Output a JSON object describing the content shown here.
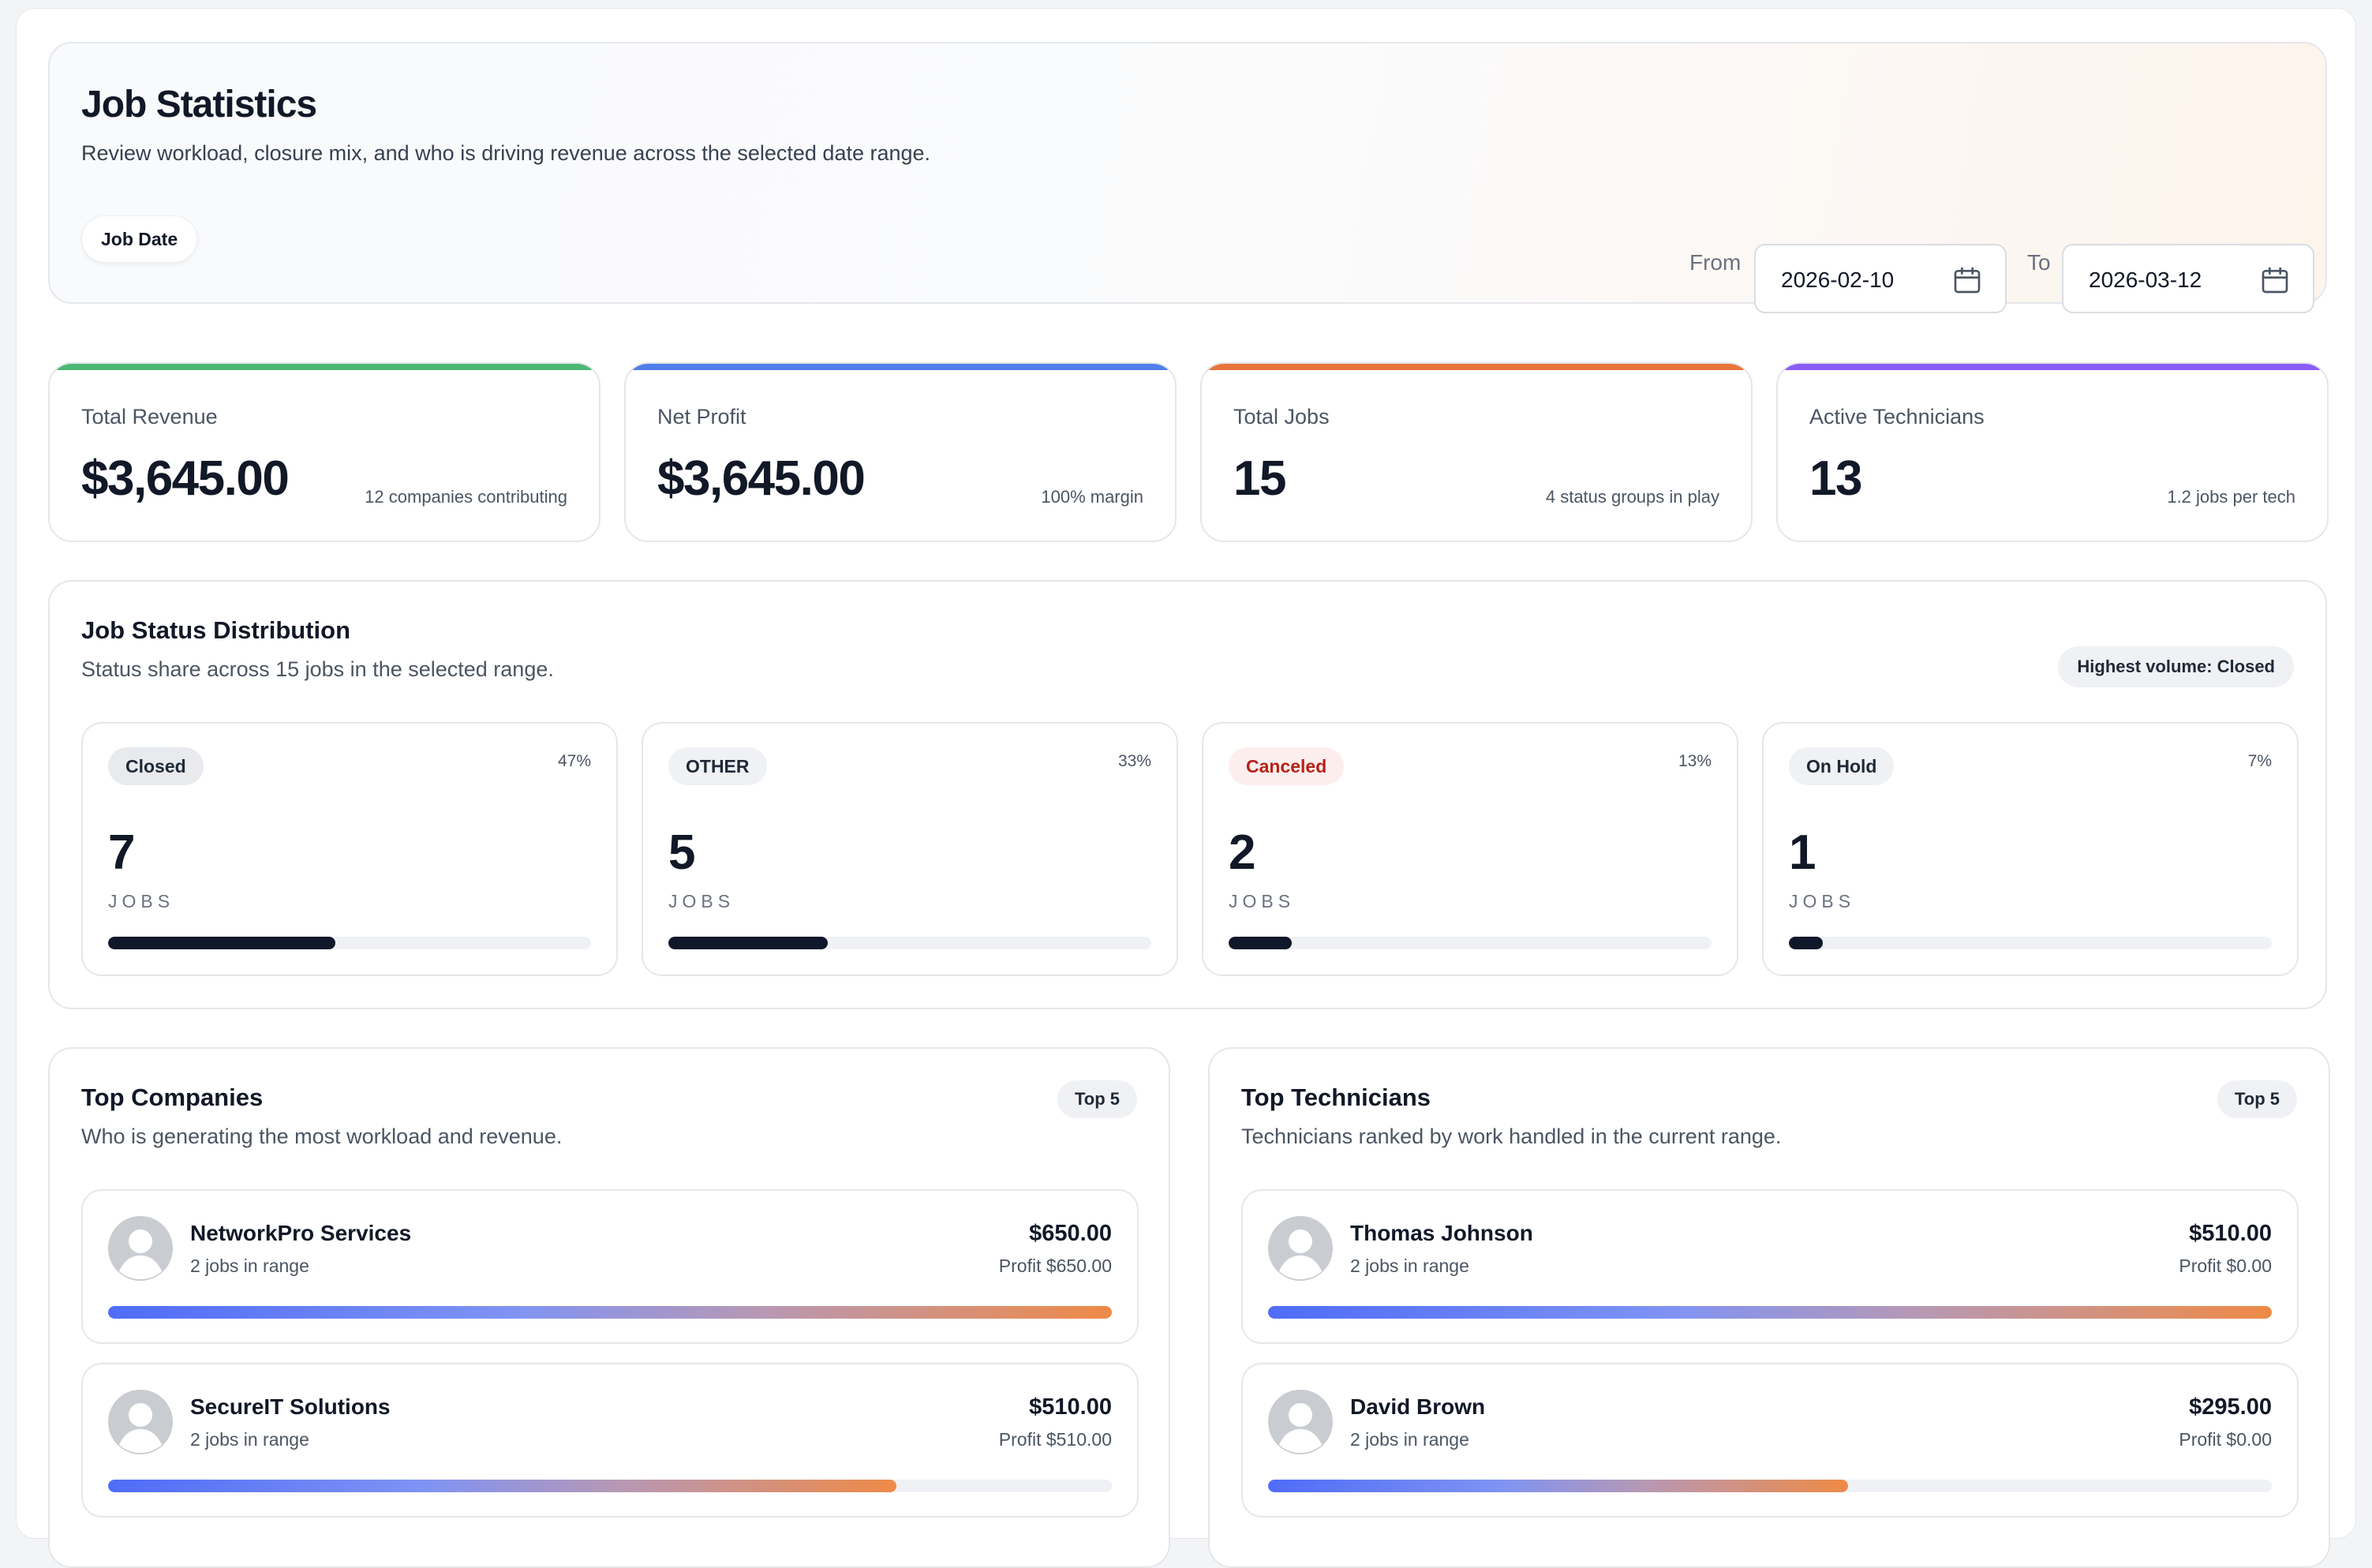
{
  "header": {
    "title": "Job Statistics",
    "subtitle": "Review workload, closure mix, and who is driving revenue across the selected date range.",
    "filter_label": "Job Date",
    "from_label": "From",
    "from_value": "2026-02-10",
    "to_label": "To",
    "to_value": "2026-03-12"
  },
  "kpis": [
    {
      "label": "Total Revenue",
      "value": "$3,645.00",
      "note": "12 companies contributing",
      "color": "#4cb874"
    },
    {
      "label": "Net Profit",
      "value": "$3,645.00",
      "note": "100% margin",
      "color": "#4f7fe8"
    },
    {
      "label": "Total Jobs",
      "value": "15",
      "note": "4 status groups in play",
      "color": "#e8743b"
    },
    {
      "label": "Active Technicians",
      "value": "13",
      "note": "1.2 jobs per tech",
      "color": "#8b5cf6"
    }
  ],
  "distribution": {
    "title": "Job Status Distribution",
    "subtitle": "Status share across 15 jobs in the selected range.",
    "highlight": "Highest volume: Closed",
    "jobs_label": "JOBS",
    "statuses": [
      {
        "label": "Closed",
        "pct": "47%",
        "count": "7",
        "fraction": 0.47,
        "tag_bg": "#e8eaee",
        "tag_color": "#1f2937"
      },
      {
        "label": "OTHER",
        "pct": "33%",
        "count": "5",
        "fraction": 0.33,
        "tag_bg": "#eff1f4",
        "tag_color": "#1f2937"
      },
      {
        "label": "Canceled",
        "pct": "13%",
        "count": "2",
        "fraction": 0.13,
        "tag_bg": "#fdeeee",
        "tag_color": "#b42318"
      },
      {
        "label": "On Hold",
        "pct": "7%",
        "count": "1",
        "fraction": 0.07,
        "tag_bg": "#eff1f4",
        "tag_color": "#1f2937"
      }
    ]
  },
  "companies": {
    "title": "Top Companies",
    "subtitle": "Who is generating the most workload and revenue.",
    "badge": "Top 5",
    "items": [
      {
        "name": "NetworkPro Services",
        "meta": "2 jobs in range",
        "amount": "$650.00",
        "profit": "Profit $650.00",
        "fraction": 1.0
      },
      {
        "name": "SecureIT Solutions",
        "meta": "2 jobs in range",
        "amount": "$510.00",
        "profit": "Profit $510.00",
        "fraction": 0.785
      }
    ]
  },
  "technicians": {
    "title": "Top Technicians",
    "subtitle": "Technicians ranked by work handled in the current range.",
    "badge": "Top 5",
    "items": [
      {
        "name": "Thomas Johnson",
        "meta": "2 jobs in range",
        "amount": "$510.00",
        "profit": "Profit $0.00",
        "fraction": 1.0
      },
      {
        "name": "David Brown",
        "meta": "2 jobs in range",
        "amount": "$295.00",
        "profit": "Profit $0.00",
        "fraction": 0.578
      }
    ]
  }
}
